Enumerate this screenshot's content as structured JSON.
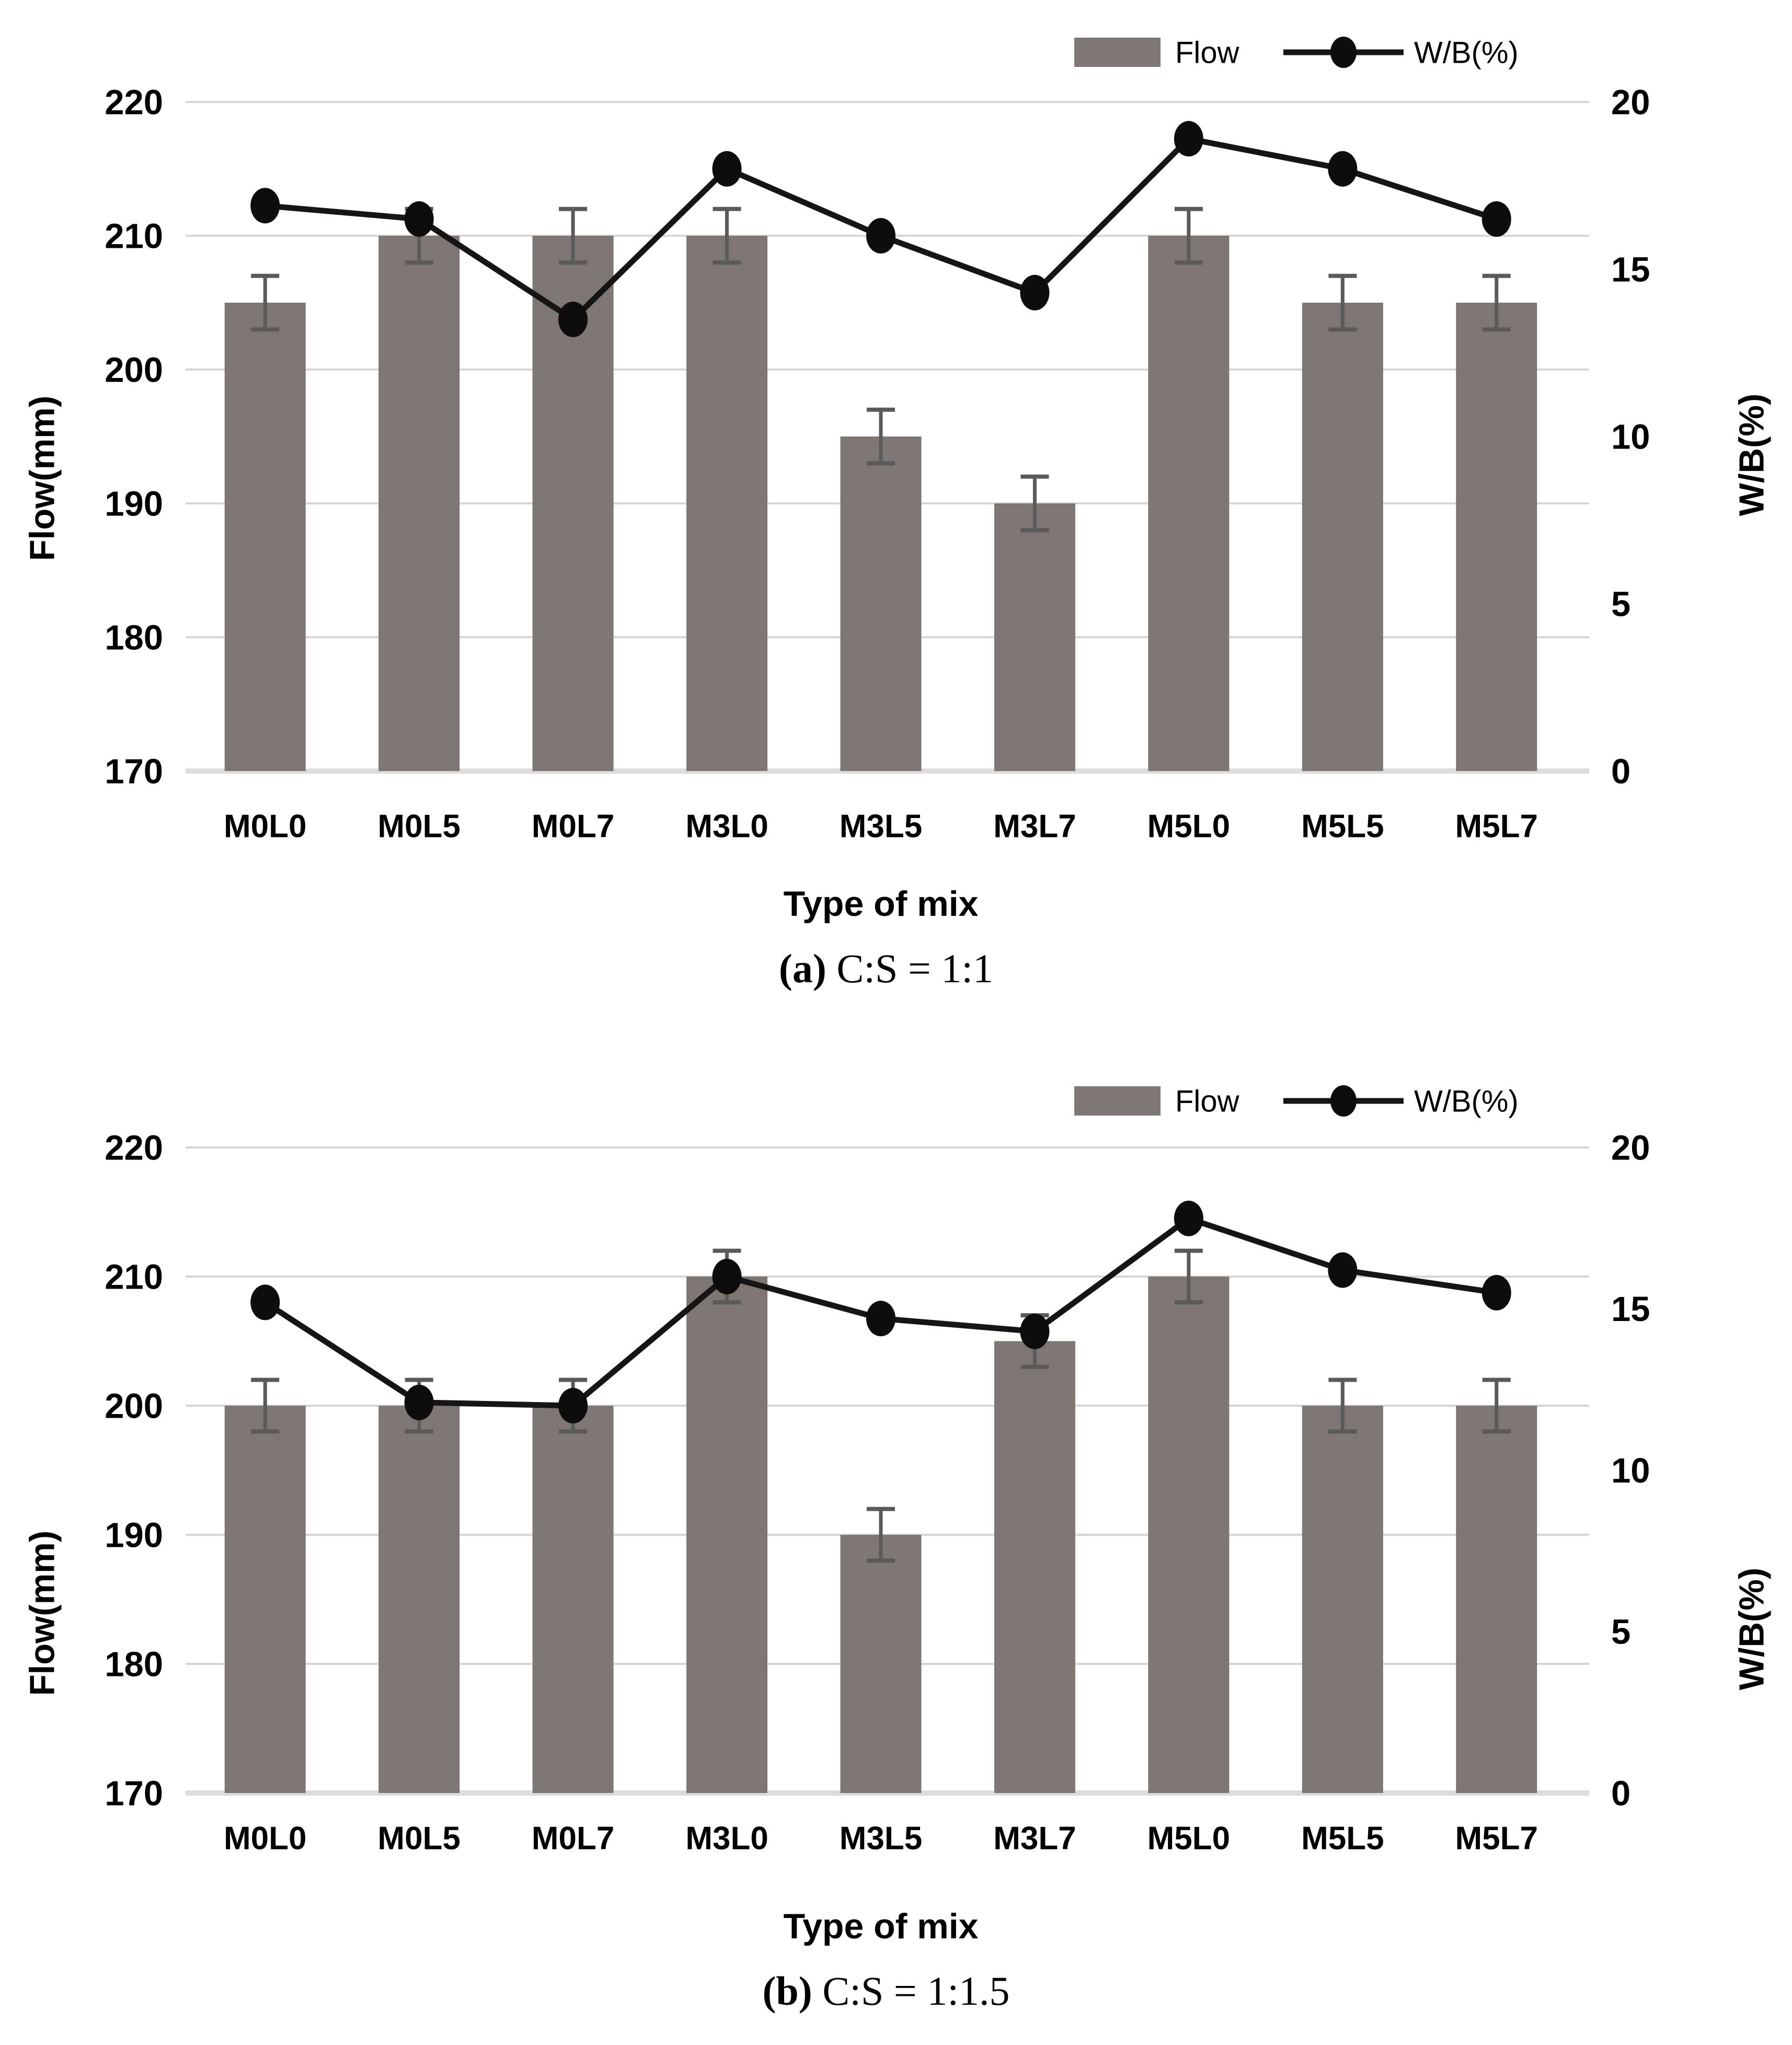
{
  "figure": {
    "legend": {
      "flow_label": "Flow",
      "wb_label": "W/B(%)"
    },
    "colors": {
      "bar": "#7d7672",
      "line": "#151515",
      "marker": "#0d0d0d",
      "gridline": "#d6d6d6",
      "baseline": "#dcdcdc",
      "error_bar": "#5a5a5a",
      "text": "#000000"
    },
    "axes": {
      "left_title": "Flow(mm)",
      "right_title": "W/B(%)",
      "x_title": "Type of mix",
      "left_ticks": [
        220,
        210,
        200,
        190,
        180,
        170
      ],
      "right_ticks": [
        20,
        15,
        10,
        5,
        0
      ],
      "left_range": [
        170,
        220
      ],
      "right_range": [
        0,
        20
      ],
      "grid": "horizontal-only"
    }
  },
  "chart_data": [
    {
      "id": "a",
      "type": "bar+line",
      "caption_prefix": "(a)",
      "caption_text": " C:S = 1:1",
      "categories": [
        "M0L0",
        "M0L5",
        "M0L7",
        "M3L0",
        "M3L5",
        "M3L7",
        "M5L0",
        "M5L5",
        "M5L7"
      ],
      "series": [
        {
          "name": "Flow",
          "type": "bar",
          "axis": "left",
          "unit": "mm",
          "values": [
            205,
            210,
            210,
            210,
            195,
            190,
            210,
            205,
            205
          ],
          "error_plus_minus": [
            2,
            2,
            2,
            2,
            2,
            2,
            2,
            2,
            2
          ]
        },
        {
          "name": "W/B(%)",
          "type": "line",
          "axis": "right",
          "unit": "%",
          "values": [
            16.9,
            16.5,
            13.5,
            18.0,
            16.0,
            14.3,
            18.9,
            18.0,
            16.5
          ]
        }
      ],
      "left_ylim": [
        170,
        220
      ],
      "right_ylim": [
        0,
        20
      ],
      "legend_position": "top-right"
    },
    {
      "id": "b",
      "type": "bar+line",
      "caption_prefix": "(b)",
      "caption_text": " C:S = 1:1.5",
      "categories": [
        "M0L0",
        "M0L5",
        "M0L7",
        "M3L0",
        "M3L5",
        "M3L7",
        "M5L0",
        "M5L5",
        "M5L7"
      ],
      "series": [
        {
          "name": "Flow",
          "type": "bar",
          "axis": "left",
          "unit": "mm",
          "values": [
            200,
            200,
            200,
            210,
            190,
            205,
            210,
            200,
            200
          ],
          "error_plus_minus": [
            2,
            2,
            2,
            2,
            2,
            2,
            2,
            2,
            2
          ]
        },
        {
          "name": "W/B(%)",
          "type": "line",
          "axis": "right",
          "unit": "%",
          "values": [
            15.2,
            12.1,
            12.0,
            16.0,
            14.7,
            14.3,
            17.8,
            16.2,
            15.5
          ]
        }
      ],
      "left_ylim": [
        170,
        220
      ],
      "right_ylim": [
        0,
        20
      ],
      "legend_position": "top-right"
    }
  ]
}
